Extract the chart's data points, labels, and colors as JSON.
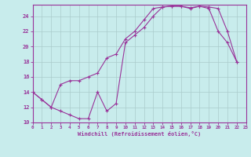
{
  "xlabel": "Windchill (Refroidissement éolien,°C)",
  "bg_color": "#c8ecec",
  "line_color": "#993399",
  "grid_color": "#aacccc",
  "spine_color": "#993399",
  "x_min": 0,
  "x_max": 23,
  "y_min": 10,
  "y_max": 25.5,
  "x_ticks": [
    0,
    1,
    2,
    3,
    4,
    5,
    6,
    7,
    8,
    9,
    10,
    11,
    12,
    13,
    14,
    15,
    16,
    17,
    18,
    19,
    20,
    21,
    22,
    23
  ],
  "y_ticks": [
    10,
    12,
    14,
    16,
    18,
    20,
    22,
    24
  ],
  "curve1_x": [
    0,
    1,
    2,
    3,
    4,
    5,
    6,
    7,
    8,
    9,
    10,
    11,
    12,
    13,
    14,
    15,
    16,
    17,
    18,
    19,
    20,
    21,
    22
  ],
  "curve1_y": [
    14,
    13,
    12,
    11.5,
    11,
    10.5,
    10.5,
    14,
    11.5,
    12.5,
    20.5,
    21.5,
    22.5,
    24,
    25.2,
    25.3,
    25.3,
    25,
    25.3,
    25,
    22,
    20.5,
    18
  ],
  "curve2_x": [
    0,
    1,
    2,
    3,
    4,
    5,
    6,
    7,
    8,
    9,
    10,
    11,
    12,
    13,
    14,
    15,
    16,
    17,
    18,
    19,
    20,
    21,
    22
  ],
  "curve2_y": [
    14,
    13,
    12,
    15,
    15.5,
    15.5,
    16,
    16.5,
    18.5,
    19,
    21,
    22,
    23.5,
    25,
    25.2,
    25.3,
    25.3,
    25.1,
    25.3,
    25.2,
    25,
    22,
    18
  ]
}
